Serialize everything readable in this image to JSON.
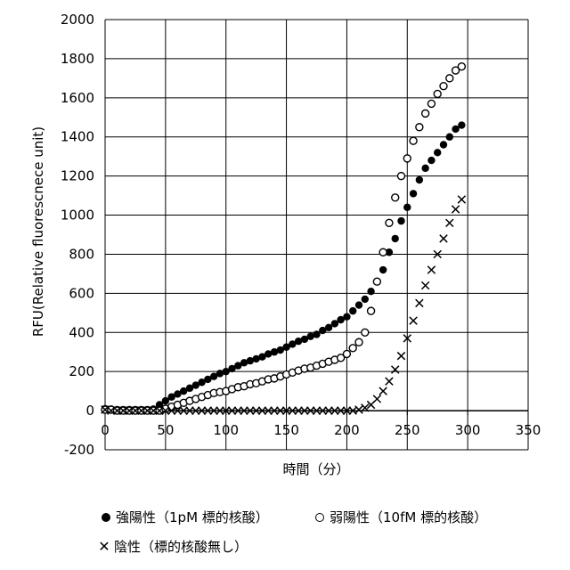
{
  "chart_data": {
    "type": "scatter",
    "xlabel": "時間（分）",
    "ylabel": "RFU(Relative fluorescnece unit)",
    "xlim": [
      0,
      350
    ],
    "ylim": [
      -200,
      2000
    ],
    "xticks": [
      "0",
      "50",
      "100",
      "150",
      "200",
      "250",
      "300",
      "350"
    ],
    "yticks": [
      "-200",
      "0",
      "200",
      "400",
      "600",
      "800",
      "1000",
      "1200",
      "1400",
      "1600",
      "1800",
      "2000"
    ],
    "grid": true,
    "legend_position": "bottom",
    "series": [
      {
        "name": "強陽性（1pM 標的核酸）",
        "marker": "filled-circle",
        "color": "#000000",
        "x": [
          0,
          5,
          10,
          15,
          20,
          25,
          30,
          35,
          40,
          45,
          50,
          55,
          60,
          65,
          70,
          75,
          80,
          85,
          90,
          95,
          100,
          105,
          110,
          115,
          120,
          125,
          130,
          135,
          140,
          145,
          150,
          155,
          160,
          165,
          170,
          175,
          180,
          185,
          190,
          195,
          200,
          205,
          210,
          215,
          220,
          225,
          230,
          235,
          240,
          245,
          250,
          255,
          260,
          265,
          270,
          275,
          280,
          285,
          290,
          295
        ],
        "y": [
          10,
          8,
          5,
          5,
          5,
          5,
          5,
          5,
          8,
          30,
          50,
          70,
          85,
          100,
          115,
          130,
          145,
          160,
          175,
          190,
          200,
          215,
          230,
          245,
          255,
          265,
          275,
          290,
          300,
          310,
          325,
          340,
          355,
          365,
          380,
          390,
          410,
          425,
          445,
          465,
          480,
          510,
          540,
          570,
          610,
          660,
          720,
          810,
          880,
          970,
          1040,
          1110,
          1180,
          1240,
          1280,
          1320,
          1360,
          1400,
          1440,
          1460
        ]
      },
      {
        "name": "弱陽性（10fM 標的核酸）",
        "marker": "open-circle",
        "color": "#000000",
        "x": [
          0,
          5,
          10,
          15,
          20,
          25,
          30,
          35,
          40,
          45,
          50,
          55,
          60,
          65,
          70,
          75,
          80,
          85,
          90,
          95,
          100,
          105,
          110,
          115,
          120,
          125,
          130,
          135,
          140,
          145,
          150,
          155,
          160,
          165,
          170,
          175,
          180,
          185,
          190,
          195,
          200,
          205,
          210,
          215,
          220,
          225,
          230,
          235,
          240,
          245,
          250,
          255,
          260,
          265,
          270,
          275,
          280,
          285,
          290,
          295
        ],
        "y": [
          5,
          5,
          0,
          0,
          0,
          0,
          0,
          0,
          0,
          0,
          10,
          20,
          30,
          40,
          50,
          60,
          70,
          80,
          90,
          95,
          100,
          110,
          120,
          125,
          135,
          140,
          150,
          160,
          165,
          175,
          185,
          195,
          205,
          215,
          220,
          230,
          240,
          250,
          260,
          270,
          290,
          320,
          350,
          400,
          510,
          660,
          810,
          960,
          1090,
          1200,
          1290,
          1380,
          1450,
          1520,
          1570,
          1620,
          1660,
          1700,
          1740,
          1760
        ]
      },
      {
        "name": "陰性（標的核酸無し）",
        "marker": "cross",
        "color": "#000000",
        "x": [
          0,
          5,
          10,
          15,
          20,
          25,
          30,
          35,
          40,
          45,
          50,
          55,
          60,
          65,
          70,
          75,
          80,
          85,
          90,
          95,
          100,
          105,
          110,
          115,
          120,
          125,
          130,
          135,
          140,
          145,
          150,
          155,
          160,
          165,
          170,
          175,
          180,
          185,
          190,
          195,
          200,
          205,
          210,
          215,
          220,
          225,
          230,
          235,
          240,
          245,
          250,
          255,
          260,
          265,
          270,
          275,
          280,
          285,
          290,
          295
        ],
        "y": [
          5,
          0,
          0,
          0,
          0,
          0,
          0,
          0,
          0,
          0,
          0,
          0,
          0,
          0,
          0,
          0,
          0,
          0,
          0,
          0,
          0,
          0,
          0,
          0,
          0,
          0,
          0,
          0,
          0,
          0,
          0,
          0,
          0,
          0,
          0,
          0,
          0,
          0,
          0,
          0,
          0,
          0,
          5,
          15,
          30,
          60,
          100,
          150,
          210,
          280,
          370,
          460,
          550,
          640,
          720,
          800,
          880,
          960,
          1030,
          1080
        ]
      }
    ]
  },
  "legend": {
    "items": [
      {
        "label": "強陽性（1pM 標的核酸）"
      },
      {
        "label": "弱陽性（10fM 標的核酸）"
      },
      {
        "label": "陰性（標的核酸無し）"
      }
    ]
  }
}
